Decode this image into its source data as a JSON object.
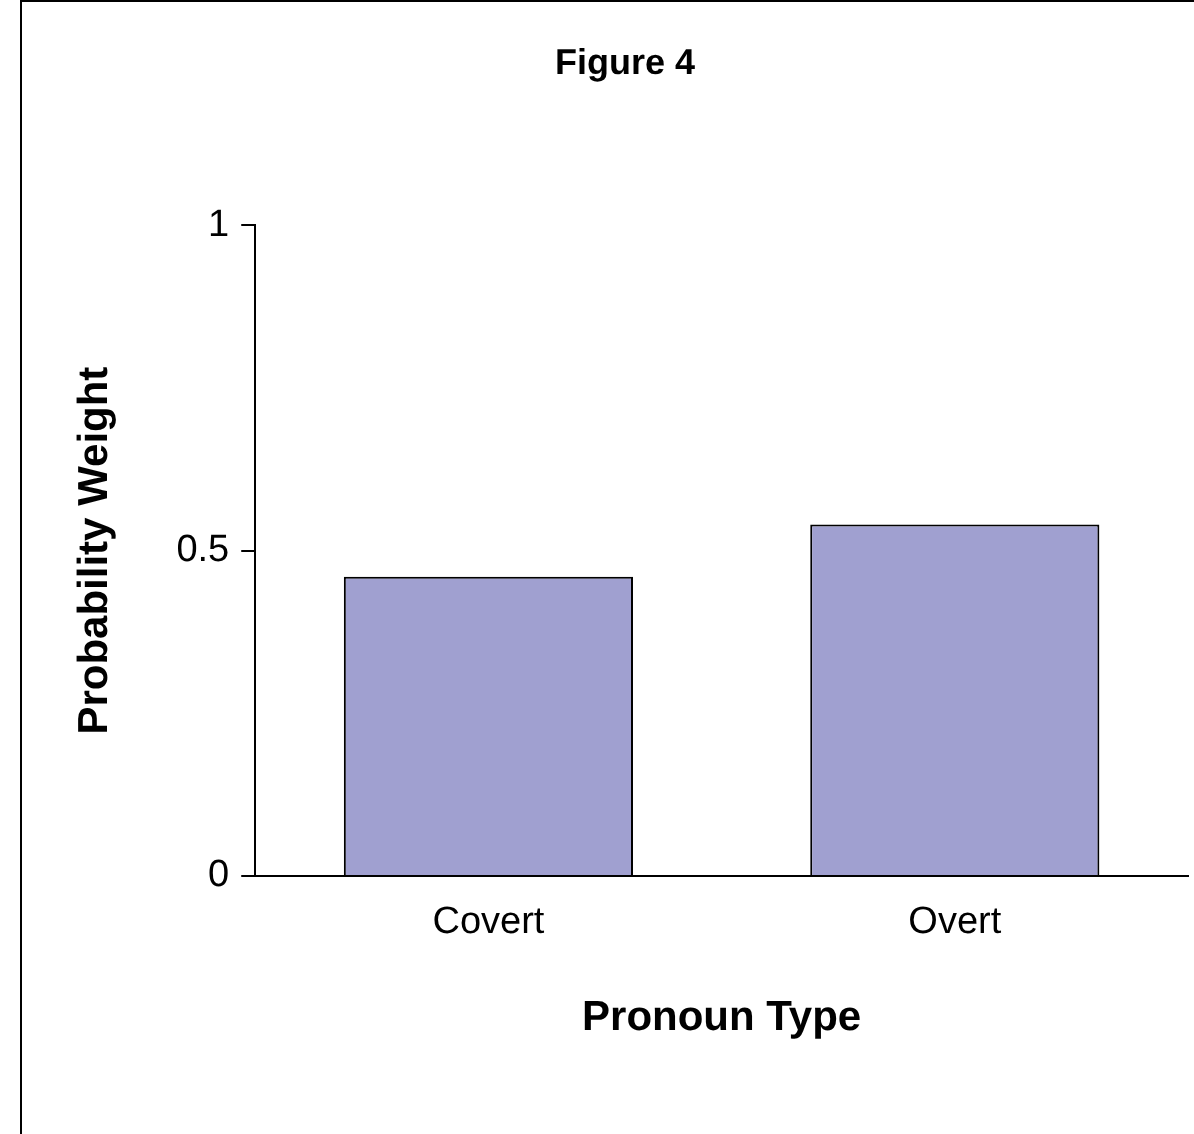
{
  "chart_data": {
    "type": "bar",
    "title": "Figure 4",
    "xlabel": "Pronoun Type",
    "ylabel": "Probability Weight",
    "categories": [
      "Covert",
      "Overt"
    ],
    "values": [
      0.46,
      0.54
    ],
    "color": "#a0a0d0",
    "ylim": [
      0,
      1
    ],
    "yticks": [
      0,
      0.5,
      1
    ],
    "grid": false,
    "legend": false
  }
}
